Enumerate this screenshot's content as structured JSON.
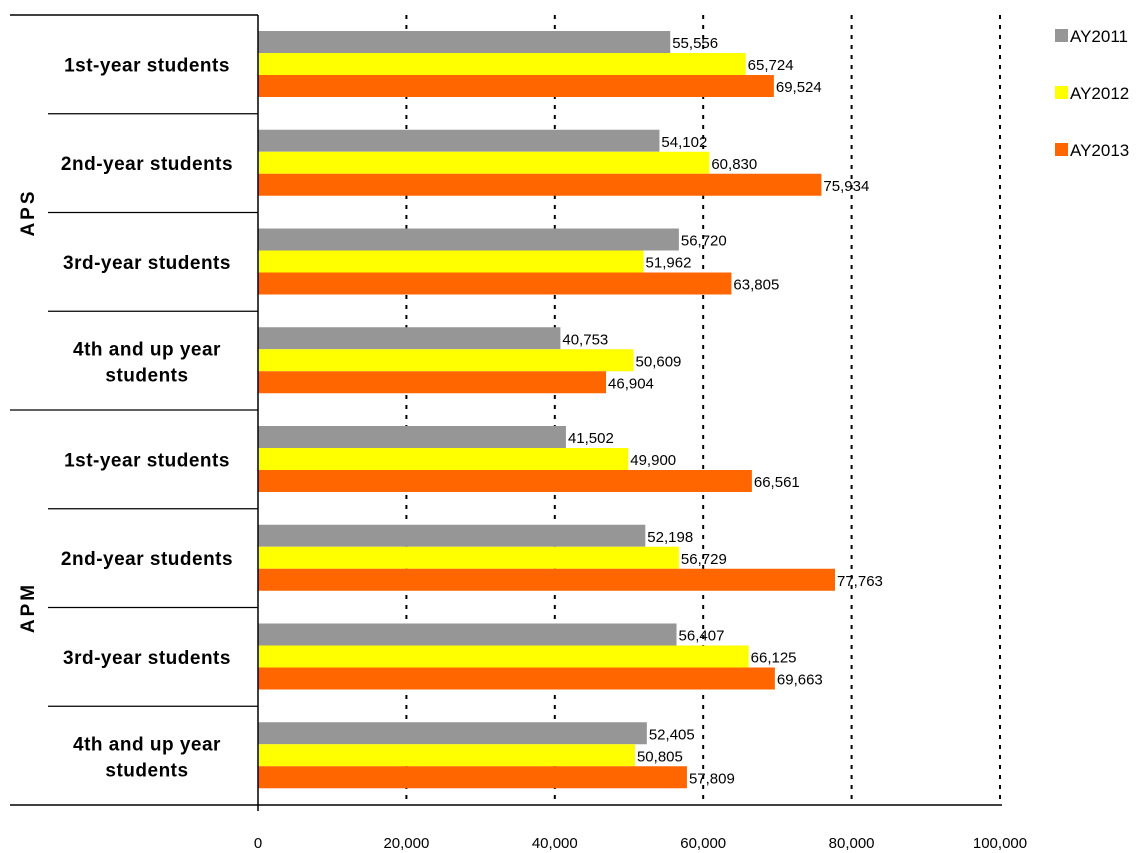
{
  "chart_data": {
    "type": "bar",
    "orientation": "horizontal",
    "title": "",
    "xlabel": "",
    "ylabel": "",
    "xlim": [
      0,
      100000
    ],
    "xticks": [
      "0",
      "20,000",
      "40,000",
      "60,000",
      "80,000",
      "100,000"
    ],
    "xtick_values": [
      0,
      20000,
      40000,
      60000,
      80000,
      100000
    ],
    "grid": "vertical dotted",
    "legend_position": "top-right",
    "groups": [
      {
        "name": "APS",
        "categories": [
          "1st-year students",
          "2nd-year students",
          "3rd-year students",
          "4th and up year students"
        ]
      },
      {
        "name": "APM",
        "categories": [
          "1st-year students",
          "2nd-year students",
          "3rd-year students",
          "4th and up year students"
        ]
      }
    ],
    "series": [
      {
        "name": "AY2011",
        "color": "#969696",
        "values": [
          55556,
          54102,
          56720,
          40753,
          41502,
          52198,
          56407,
          52405
        ],
        "labels": [
          "55,556",
          "54,102",
          "56,720",
          "40,753",
          "41,502",
          "52,198",
          "56,407",
          "52,405"
        ]
      },
      {
        "name": "AY2012",
        "color": "#ffff00",
        "values": [
          65724,
          60830,
          51962,
          50609,
          49900,
          56729,
          66125,
          50805
        ],
        "labels": [
          "65,724",
          "60,830",
          "51,962",
          "50,609",
          "49,900",
          "56,729",
          "66,125",
          "50,805"
        ]
      },
      {
        "name": "AY2013",
        "color": "#ff6600",
        "values": [
          69524,
          75934,
          63805,
          46904,
          66561,
          77763,
          69663,
          57809
        ],
        "labels": [
          "69,524",
          "75,934",
          "63,805",
          "46,904",
          "66,561",
          "77,763",
          "69,663",
          "57,809"
        ]
      }
    ]
  }
}
